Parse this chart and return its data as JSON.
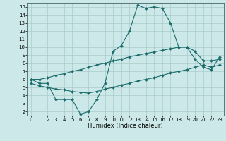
{
  "x_vals": [
    0,
    1,
    2,
    3,
    4,
    5,
    6,
    7,
    8,
    9,
    10,
    11,
    12,
    13,
    14,
    15,
    16,
    17,
    18,
    19,
    20,
    21,
    22,
    23
  ],
  "line1": [
    6.0,
    5.5,
    5.5,
    3.5,
    3.5,
    3.5,
    1.7,
    2.0,
    3.5,
    5.5,
    9.5,
    10.2,
    12.0,
    15.2,
    14.8,
    15.0,
    14.8,
    13.0,
    10.0,
    10.0,
    8.5,
    7.5,
    7.2,
    8.8
  ],
  "line2": [
    6.0,
    6.0,
    6.2,
    6.5,
    6.7,
    7.0,
    7.2,
    7.5,
    7.8,
    8.0,
    8.3,
    8.5,
    8.8,
    9.0,
    9.2,
    9.4,
    9.6,
    9.8,
    10.0,
    10.0,
    9.5,
    8.3,
    8.3,
    8.5
  ],
  "line3": [
    5.5,
    5.2,
    5.0,
    4.8,
    4.7,
    4.5,
    4.4,
    4.3,
    4.5,
    4.8,
    5.0,
    5.3,
    5.5,
    5.8,
    6.0,
    6.2,
    6.5,
    6.8,
    7.0,
    7.2,
    7.5,
    7.8,
    7.5,
    7.8
  ],
  "bg_color": "#cce8e8",
  "grid_color": "#aacccc",
  "line_color": "#1a6b6b",
  "xlabel": "Humidex (Indice chaleur)",
  "xlim": [
    -0.5,
    23.5
  ],
  "ylim": [
    1.5,
    15.5
  ],
  "yticks": [
    2,
    3,
    4,
    5,
    6,
    7,
    8,
    9,
    10,
    11,
    12,
    13,
    14,
    15
  ],
  "xticks": [
    0,
    1,
    2,
    3,
    4,
    5,
    6,
    7,
    8,
    9,
    10,
    11,
    12,
    13,
    14,
    15,
    16,
    17,
    18,
    19,
    20,
    21,
    22,
    23
  ],
  "tick_fontsize": 5.0,
  "xlabel_fontsize": 6.0,
  "marker_size": 2.0,
  "line_width": 0.8
}
